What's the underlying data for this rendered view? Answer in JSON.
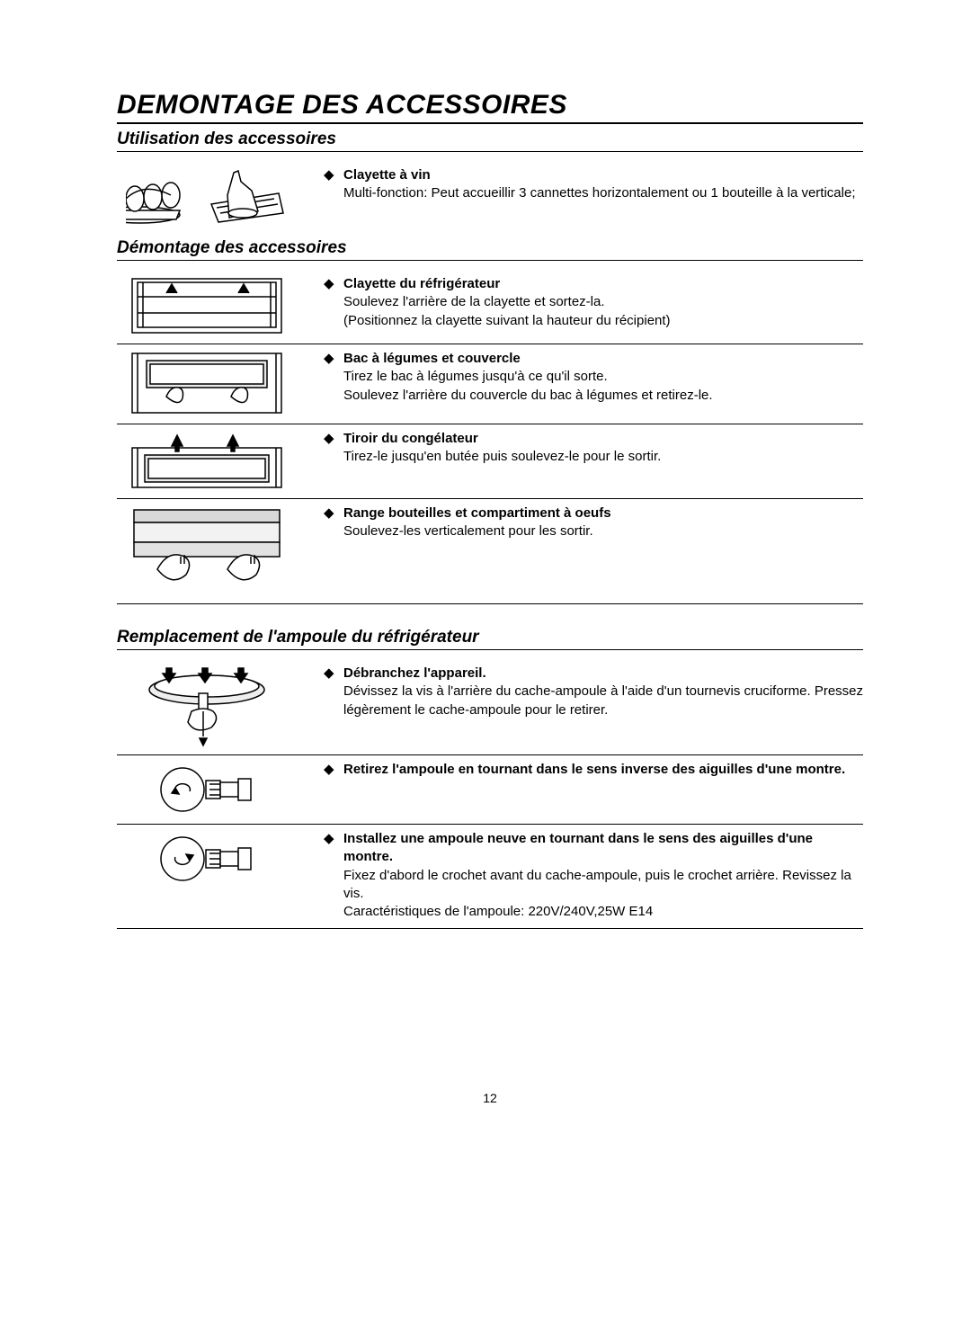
{
  "page": {
    "title": "DEMONTAGE DES ACCESSOIRES",
    "page_number": "12"
  },
  "sections": {
    "utilisation": {
      "heading": "Utilisation des accessoires",
      "items": [
        {
          "title": "Clayette à vin",
          "text": "Multi-fonction: Peut accueillir 3 cannettes horizontalement ou 1 bouteille à la verticale;"
        }
      ]
    },
    "demontage": {
      "heading": "Démontage des accessoires",
      "items": [
        {
          "title": "Clayette du réfrigérateur",
          "text": "Soulevez l'arrière de la clayette et sortez-la.\n(Positionnez la clayette suivant la hauteur du récipient)"
        },
        {
          "title": "Bac à légumes et couvercle",
          "text": "Tirez le bac à légumes jusqu'à ce qu'il sorte.\nSoulevez l'arrière du couvercle du bac à légumes et retirez-le."
        },
        {
          "title": "Tiroir du congélateur",
          "text": "Tirez-le jusqu'en butée puis soulevez-le pour le sortir."
        },
        {
          "title": "Range bouteilles et compartiment à oeufs",
          "text": "Soulevez-les verticalement pour les sortir."
        }
      ]
    },
    "remplacement": {
      "heading": "Remplacement de l'ampoule du réfrigérateur",
      "items": [
        {
          "title": "Débranchez l'appareil.",
          "text": "Dévissez la vis à l'arrière du cache-ampoule à l'aide d'un tournevis cruciforme. Pressez légèrement le cache-ampoule pour le retirer."
        },
        {
          "title": "Retirez l'ampoule en tournant dans le sens inverse des aiguilles d'une montre.",
          "text": ""
        },
        {
          "title": "Installez une ampoule neuve en tournant dans le sens des aiguilles d'une montre.",
          "text": "Fixez d'abord le crochet avant du cache-ampoule, puis le crochet arrière. Revissez la vis.\nCaractéristiques de l'ampoule: 220V/240V,25W E14"
        }
      ]
    }
  }
}
